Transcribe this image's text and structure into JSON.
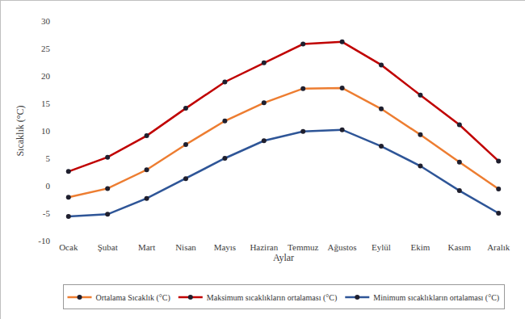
{
  "chart_data": {
    "type": "line",
    "x_label": "Aylar",
    "y_label": "Sıcaklık (°C)",
    "categories": [
      "Ocak",
      "Şubat",
      "Mart",
      "Nisan",
      "Mayıs",
      "Haziran",
      "Temmuz",
      "Ağustos",
      "Eylül",
      "Ekim",
      "Kasım",
      "Aralık"
    ],
    "series": [
      {
        "name": "Ortalama Sıcaklık (°C)",
        "color": "#ed7d31",
        "marker": "circle",
        "values": [
          -2.1,
          -0.5,
          2.9,
          7.5,
          11.8,
          15.1,
          17.7,
          17.8,
          14.0,
          9.3,
          4.3,
          -0.6
        ]
      },
      {
        "name": "Maksimum sıcaklıkların ortalaması (°C)",
        "color": "#c00000",
        "marker": "circle",
        "values": [
          2.6,
          5.2,
          9.1,
          14.1,
          18.9,
          22.4,
          25.8,
          26.2,
          22.0,
          16.5,
          11.1,
          4.5
        ]
      },
      {
        "name": "Minimum sıcaklıkların ortalaması (°C)",
        "color": "#2e5597",
        "marker": "circle",
        "values": [
          -5.6,
          -5.2,
          -2.3,
          1.3,
          5.0,
          8.2,
          9.9,
          10.2,
          7.2,
          3.6,
          -0.9,
          -5.0
        ]
      }
    ],
    "ylim": [
      -10,
      30
    ],
    "yticks": [
      -10,
      -5,
      0,
      5,
      10,
      15,
      20,
      25,
      30
    ],
    "grid": false,
    "legend": "bottom"
  }
}
